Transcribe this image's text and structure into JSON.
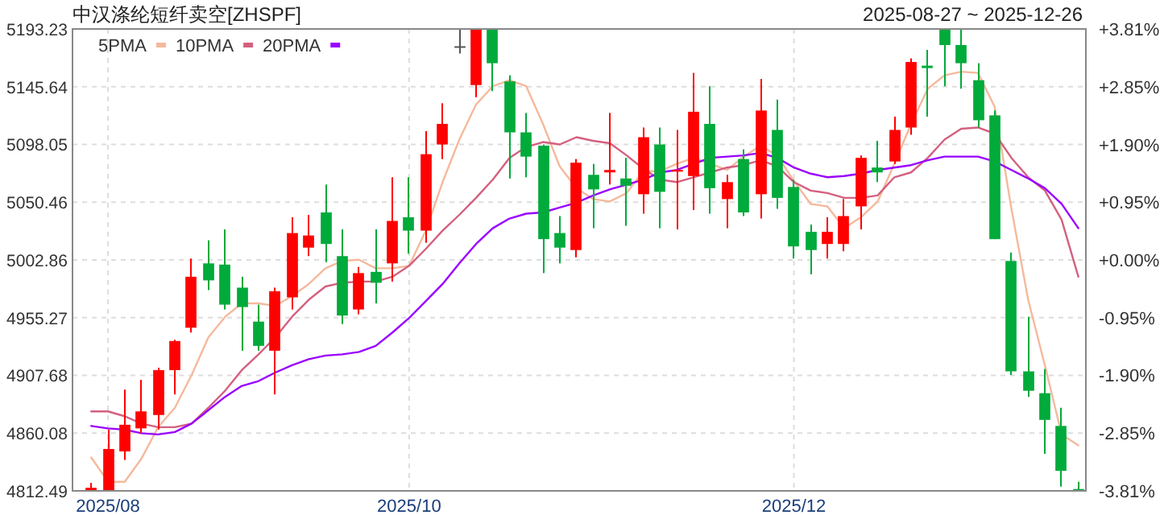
{
  "chart_data": {
    "type": "candlestick",
    "title": "中汉涤纶短纤卖空[ZHSPF]",
    "subtitle": "2025-08-27 ~ 2025-12-26",
    "categories": [
      null,
      "2025/08",
      null,
      null,
      null,
      null,
      null,
      null,
      null,
      null,
      null,
      null,
      null,
      null,
      null,
      null,
      null,
      null,
      null,
      "2025/10",
      null,
      null,
      null,
      null,
      null,
      null,
      null,
      null,
      null,
      null,
      null,
      null,
      null,
      null,
      null,
      null,
      null,
      null,
      null,
      null,
      null,
      null,
      "2025/12",
      null,
      null,
      null,
      null,
      null,
      null,
      null,
      null,
      null,
      null,
      null,
      null,
      null,
      null,
      null,
      null,
      null
    ],
    "ohlc": [
      [
        4813,
        4819,
        4812.5,
        4815
      ],
      [
        4812.5,
        4863,
        4812.5,
        4847
      ],
      [
        4845,
        4896,
        4838,
        4867
      ],
      [
        4864,
        4904,
        4860,
        4878
      ],
      [
        4875,
        4914,
        4863,
        4912
      ],
      [
        4912,
        4937,
        4892,
        4936
      ],
      [
        4947,
        5004,
        4943,
        4989
      ],
      [
        5000,
        5019,
        4978,
        4986
      ],
      [
        4999,
        5028,
        4962,
        4966
      ],
      [
        4980,
        4989,
        4928,
        4964
      ],
      [
        4952,
        4966,
        4928,
        4932
      ],
      [
        4928,
        4980,
        4892,
        4977
      ],
      [
        4972,
        5038,
        4962,
        5025
      ],
      [
        5013,
        5040,
        5006,
        5023
      ],
      [
        5042,
        5065,
        5001,
        5016
      ],
      [
        5006,
        5028,
        4950,
        4957
      ],
      [
        4962,
        4997,
        4958,
        4992
      ],
      [
        4993,
        5028,
        4967,
        4984
      ],
      [
        5000,
        5071,
        4985,
        5035
      ],
      [
        5038,
        5071,
        5008,
        5027
      ],
      [
        5027,
        5109,
        5017,
        5090
      ],
      [
        5098,
        5132,
        5086,
        5115
      ],
      [
        5179,
        5193,
        5173,
        5179
      ],
      [
        5147,
        5193,
        5137,
        5193
      ],
      [
        5193,
        5193,
        5142,
        5165
      ],
      [
        5150,
        5155,
        5070,
        5108
      ],
      [
        5108,
        5124,
        5071,
        5088
      ],
      [
        5097,
        5098,
        4992,
        5020
      ],
      [
        5025,
        5039,
        5000,
        5013
      ],
      [
        5011,
        5086,
        5005,
        5083
      ],
      [
        5073,
        5082,
        5029,
        5061
      ],
      [
        5075,
        5124,
        5065,
        5077
      ],
      [
        5070,
        5087,
        5031,
        5064
      ],
      [
        5057,
        5112,
        5041,
        5104
      ],
      [
        5098,
        5112,
        5029,
        5059
      ],
      [
        5076,
        5110,
        5028,
        5077
      ],
      [
        5072,
        5157,
        5044,
        5125
      ],
      [
        5115,
        5146,
        5041,
        5062
      ],
      [
        5053,
        5073,
        5029,
        5067
      ],
      [
        5086,
        5094,
        5039,
        5042
      ],
      [
        5057,
        5152,
        5037,
        5126
      ],
      [
        5110,
        5135,
        5045,
        5054
      ],
      [
        5063,
        5069,
        5004,
        5014
      ],
      [
        5026,
        5032,
        4991,
        5011
      ],
      [
        5016,
        5038,
        5004,
        5026
      ],
      [
        5016,
        5053,
        5010,
        5039
      ],
      [
        5047,
        5089,
        5028,
        5087
      ],
      [
        5079,
        5101,
        5067,
        5075
      ],
      [
        5084,
        5121,
        5082,
        5110
      ],
      [
        5112,
        5169,
        5106,
        5166
      ],
      [
        5163,
        5176,
        5121,
        5161
      ],
      [
        5193,
        5193,
        5146,
        5180
      ],
      [
        5180,
        5193,
        5144,
        5165
      ],
      [
        5151,
        5165,
        5112,
        5118
      ],
      [
        5122,
        5126,
        5020,
        5020
      ],
      [
        5002,
        5009,
        4908,
        4911
      ],
      [
        4911,
        4956,
        4890,
        4895
      ],
      [
        4893,
        4913,
        4843,
        4871
      ],
      [
        4866,
        4881,
        4816,
        4829
      ],
      [
        4814,
        4820,
        4812.49,
        4812.49
      ]
    ],
    "colors": [
      "#ff0000",
      "#ff0000",
      "#ff0000",
      "#ff0000",
      "#ff0000",
      "#ff0000",
      "#ff0000",
      "#00aa3b",
      "#00aa3b",
      "#00aa3b",
      "#00aa3b",
      "#ff0000",
      "#ff0000",
      "#ff0000",
      "#00aa3b",
      "#00aa3b",
      "#ff0000",
      "#00aa3b",
      "#ff0000",
      "#00aa3b",
      "#ff0000",
      "#ff0000",
      "#555555",
      "#ff0000",
      "#00aa3b",
      "#00aa3b",
      "#00aa3b",
      "#00aa3b",
      "#00aa3b",
      "#ff0000",
      "#00aa3b",
      "#ff0000",
      "#00aa3b",
      "#ff0000",
      "#00aa3b",
      "#ff0000",
      "#ff0000",
      "#00aa3b",
      "#ff0000",
      "#00aa3b",
      "#ff0000",
      "#00aa3b",
      "#00aa3b",
      "#00aa3b",
      "#ff0000",
      "#ff0000",
      "#ff0000",
      "#00aa3b",
      "#ff0000",
      "#ff0000",
      "#00aa3b",
      "#00aa3b",
      "#00aa3b",
      "#00aa3b",
      "#00aa3b",
      "#00aa3b",
      "#00aa3b",
      "#00aa3b",
      "#00aa3b",
      "#00aa3b"
    ],
    "series": [
      {
        "type": "line",
        "name": "5PMA",
        "color": "#f5b99c",
        "values": [
          4840,
          4820,
          4820,
          4839,
          4865,
          4881,
          4908,
          4939,
          4956,
          4967,
          4967,
          4965,
          4973,
          4983,
          4996,
          5002,
          5003,
          4996,
          4996,
          4998,
          5027,
          5067,
          5102,
          5131,
          5146,
          5151,
          5146,
          5115,
          5080,
          5062,
          5053,
          5051,
          5058,
          5076,
          5076,
          5082,
          5087,
          5082,
          5077,
          5088,
          5097,
          5089,
          5068,
          5049,
          5047,
          5029,
          5038,
          5051,
          5082,
          5115,
          5144,
          5155,
          5158,
          5157,
          5129,
          5045,
          4970,
          4916,
          4859,
          4850
        ]
      },
      {
        "type": "line",
        "name": "10PMA",
        "color": "#d4607f",
        "values": [
          4878,
          4878,
          4874,
          4868,
          4865,
          4865,
          4868,
          4881,
          4895,
          4912,
          4925,
          4939,
          4956,
          4970,
          4981,
          4984,
          4985,
          4985,
          4989,
          4998,
          5012,
          5027,
          5040,
          5054,
          5069,
          5087,
          5096,
          5100,
          5098,
          5104,
          5101,
          5099,
          5089,
          5078,
          5069,
          5067,
          5071,
          5075,
          5079,
          5081,
          5085,
          5080,
          5067,
          5060,
          5058,
          5054,
          5054,
          5056,
          5071,
          5075,
          5087,
          5102,
          5111,
          5112,
          5107,
          5087,
          5071,
          5060,
          5036,
          4989
        ]
      },
      {
        "type": "line",
        "name": "20PMA",
        "color": "#9a00ff",
        "values": [
          4866,
          4864,
          4863,
          4860,
          4859,
          4861,
          4868,
          4879,
          4890,
          4899,
          4903,
          4910,
          4916,
          4921,
          4924,
          4925,
          4927,
          4932,
          4943,
          4955,
          4969,
          4983,
          5000,
          5016,
          5029,
          5037,
          5041,
          5042,
          5046,
          5050,
          5056,
          5061,
          5065,
          5069,
          5075,
          5077,
          5082,
          5087,
          5088,
          5089,
          5091,
          5087,
          5079,
          5074,
          5071,
          5072,
          5074,
          5077,
          5079,
          5081,
          5085,
          5088,
          5088,
          5088,
          5084,
          5077,
          5070,
          5062,
          5049,
          5029
        ]
      }
    ],
    "ylim": [
      4812.49,
      5193.23
    ],
    "yticks": [
      4812.49,
      4860.08,
      4907.68,
      4955.27,
      5002.86,
      5050.46,
      5098.05,
      5145.64,
      5193.23
    ],
    "y2lim": [
      -3.81,
      3.81
    ],
    "y2ticks": [
      {
        "value": -3.81,
        "label": "-3.81%"
      },
      {
        "value": -2.85,
        "label": "-2.85%"
      },
      {
        "value": -1.9,
        "label": "-1.90%"
      },
      {
        "value": -0.95,
        "label": "-0.95%"
      },
      {
        "value": 0,
        "label": "+0.00%"
      },
      {
        "value": 0.95,
        "label": "+0.95%"
      },
      {
        "value": 1.9,
        "label": "+1.90%"
      },
      {
        "value": 2.85,
        "label": "+2.85%"
      },
      {
        "value": 3.81,
        "label": "+3.81%"
      }
    ],
    "grid": true,
    "legend": "top left"
  }
}
